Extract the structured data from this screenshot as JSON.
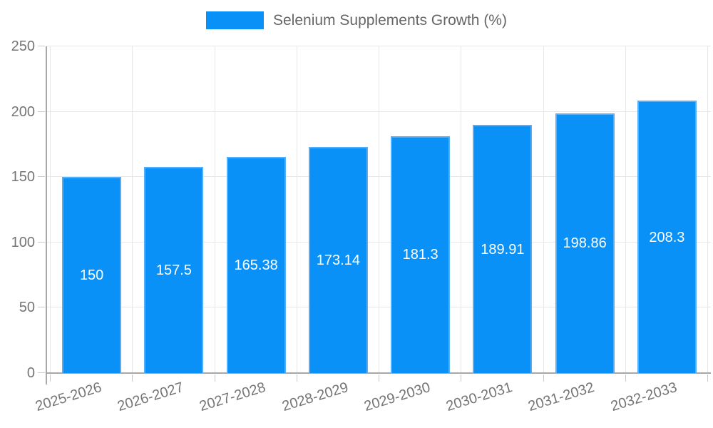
{
  "chart_data": {
    "type": "bar",
    "title": "",
    "series_name": "Selenium Supplements Growth (%)",
    "categories": [
      "2025-2026",
      "2026-2027",
      "2027-2028",
      "2028-2029",
      "2029-2030",
      "2030-2031",
      "2031-2032",
      "2032-2033"
    ],
    "values": [
      150,
      157.5,
      165.38,
      173.14,
      181.3,
      189.91,
      198.86,
      208.3
    ],
    "value_labels": [
      "150",
      "157.5",
      "165.38",
      "173.14",
      "181.3",
      "189.91",
      "198.86",
      "208.3"
    ],
    "xlabel": "",
    "ylabel": "",
    "ylim": [
      0,
      250
    ],
    "yticks": [
      0,
      50,
      100,
      150,
      200,
      250
    ],
    "legend_position": "top",
    "grid": true,
    "colors": {
      "bar_fill": "#0991f8",
      "bar_border": "#56adf8",
      "value_label": "#ffffff",
      "grid": "#e7e7e7",
      "axis": "#a8a8a8",
      "tick_mark": "#c9c9c9",
      "tick_label": "#757575",
      "legend_text": "#666666"
    }
  }
}
